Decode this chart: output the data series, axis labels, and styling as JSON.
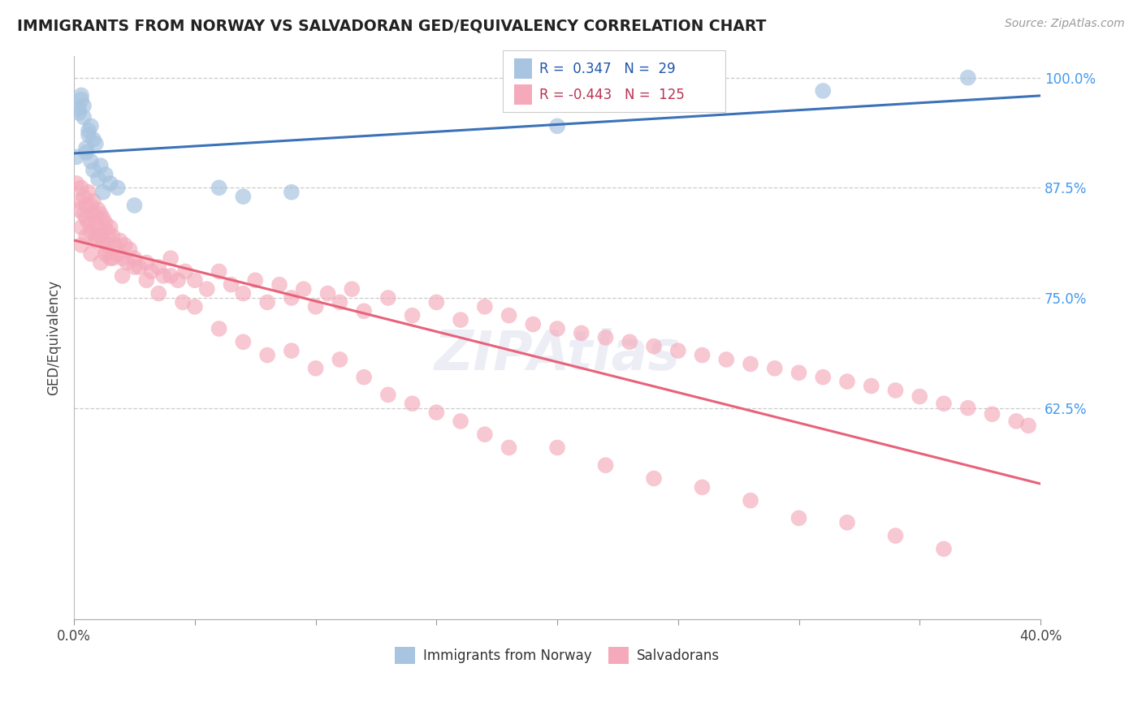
{
  "title": "IMMIGRANTS FROM NORWAY VS SALVADORAN GED/EQUIVALENCY CORRELATION CHART",
  "source": "Source: ZipAtlas.com",
  "ylabel_label": "GED/Equivalency",
  "legend_blue_label": "Immigrants from Norway",
  "legend_pink_label": "Salvadorans",
  "blue_R": 0.347,
  "blue_N": 29,
  "pink_R": -0.443,
  "pink_N": 125,
  "blue_color": "#A8C4E0",
  "pink_color": "#F4AABB",
  "blue_line_color": "#3B72B8",
  "pink_line_color": "#E8627A",
  "background_color": "#FFFFFF",
  "x_min": 0.0,
  "x_max": 0.4,
  "y_min": 0.385,
  "y_max": 1.025,
  "blue_scatter_x": [
    0.001,
    0.002,
    0.002,
    0.003,
    0.003,
    0.004,
    0.004,
    0.005,
    0.005,
    0.006,
    0.006,
    0.007,
    0.007,
    0.008,
    0.008,
    0.009,
    0.01,
    0.011,
    0.012,
    0.013,
    0.015,
    0.018,
    0.025,
    0.06,
    0.07,
    0.09,
    0.2,
    0.31,
    0.37
  ],
  "blue_scatter_y": [
    0.91,
    0.96,
    0.965,
    0.975,
    0.98,
    0.955,
    0.968,
    0.92,
    0.915,
    0.94,
    0.935,
    0.905,
    0.945,
    0.93,
    0.895,
    0.925,
    0.885,
    0.9,
    0.87,
    0.89,
    0.88,
    0.875,
    0.855,
    0.875,
    0.865,
    0.87,
    0.945,
    0.985,
    1.0
  ],
  "pink_scatter_x": [
    0.001,
    0.002,
    0.002,
    0.003,
    0.003,
    0.004,
    0.004,
    0.005,
    0.005,
    0.006,
    0.006,
    0.007,
    0.007,
    0.008,
    0.008,
    0.009,
    0.009,
    0.01,
    0.01,
    0.011,
    0.011,
    0.012,
    0.012,
    0.013,
    0.013,
    0.014,
    0.014,
    0.015,
    0.015,
    0.016,
    0.017,
    0.018,
    0.019,
    0.02,
    0.021,
    0.022,
    0.023,
    0.025,
    0.027,
    0.03,
    0.032,
    0.035,
    0.037,
    0.04,
    0.043,
    0.046,
    0.05,
    0.055,
    0.06,
    0.065,
    0.07,
    0.075,
    0.08,
    0.085,
    0.09,
    0.095,
    0.1,
    0.105,
    0.11,
    0.115,
    0.12,
    0.13,
    0.14,
    0.15,
    0.16,
    0.17,
    0.18,
    0.19,
    0.2,
    0.21,
    0.22,
    0.23,
    0.24,
    0.25,
    0.26,
    0.27,
    0.28,
    0.29,
    0.3,
    0.31,
    0.32,
    0.33,
    0.34,
    0.35,
    0.36,
    0.37,
    0.38,
    0.39,
    0.395,
    0.003,
    0.005,
    0.007,
    0.009,
    0.011,
    0.013,
    0.016,
    0.02,
    0.025,
    0.03,
    0.035,
    0.04,
    0.045,
    0.05,
    0.06,
    0.07,
    0.08,
    0.09,
    0.1,
    0.11,
    0.12,
    0.13,
    0.14,
    0.15,
    0.16,
    0.17,
    0.18,
    0.2,
    0.22,
    0.24,
    0.26,
    0.28,
    0.3,
    0.32,
    0.34,
    0.36
  ],
  "pink_scatter_y": [
    0.88,
    0.85,
    0.86,
    0.83,
    0.875,
    0.845,
    0.865,
    0.855,
    0.84,
    0.87,
    0.835,
    0.855,
    0.825,
    0.845,
    0.86,
    0.835,
    0.82,
    0.85,
    0.83,
    0.845,
    0.82,
    0.84,
    0.815,
    0.835,
    0.8,
    0.825,
    0.81,
    0.83,
    0.795,
    0.82,
    0.81,
    0.8,
    0.815,
    0.795,
    0.81,
    0.79,
    0.805,
    0.795,
    0.785,
    0.79,
    0.78,
    0.785,
    0.775,
    0.795,
    0.77,
    0.78,
    0.77,
    0.76,
    0.78,
    0.765,
    0.755,
    0.77,
    0.745,
    0.765,
    0.75,
    0.76,
    0.74,
    0.755,
    0.745,
    0.76,
    0.735,
    0.75,
    0.73,
    0.745,
    0.725,
    0.74,
    0.73,
    0.72,
    0.715,
    0.71,
    0.705,
    0.7,
    0.695,
    0.69,
    0.685,
    0.68,
    0.675,
    0.67,
    0.665,
    0.66,
    0.655,
    0.65,
    0.645,
    0.638,
    0.63,
    0.625,
    0.618,
    0.61,
    0.605,
    0.81,
    0.82,
    0.8,
    0.815,
    0.79,
    0.805,
    0.795,
    0.775,
    0.785,
    0.77,
    0.755,
    0.775,
    0.745,
    0.74,
    0.715,
    0.7,
    0.685,
    0.69,
    0.67,
    0.68,
    0.66,
    0.64,
    0.63,
    0.62,
    0.61,
    0.595,
    0.58,
    0.58,
    0.56,
    0.545,
    0.535,
    0.52,
    0.5,
    0.495,
    0.48,
    0.465
  ]
}
